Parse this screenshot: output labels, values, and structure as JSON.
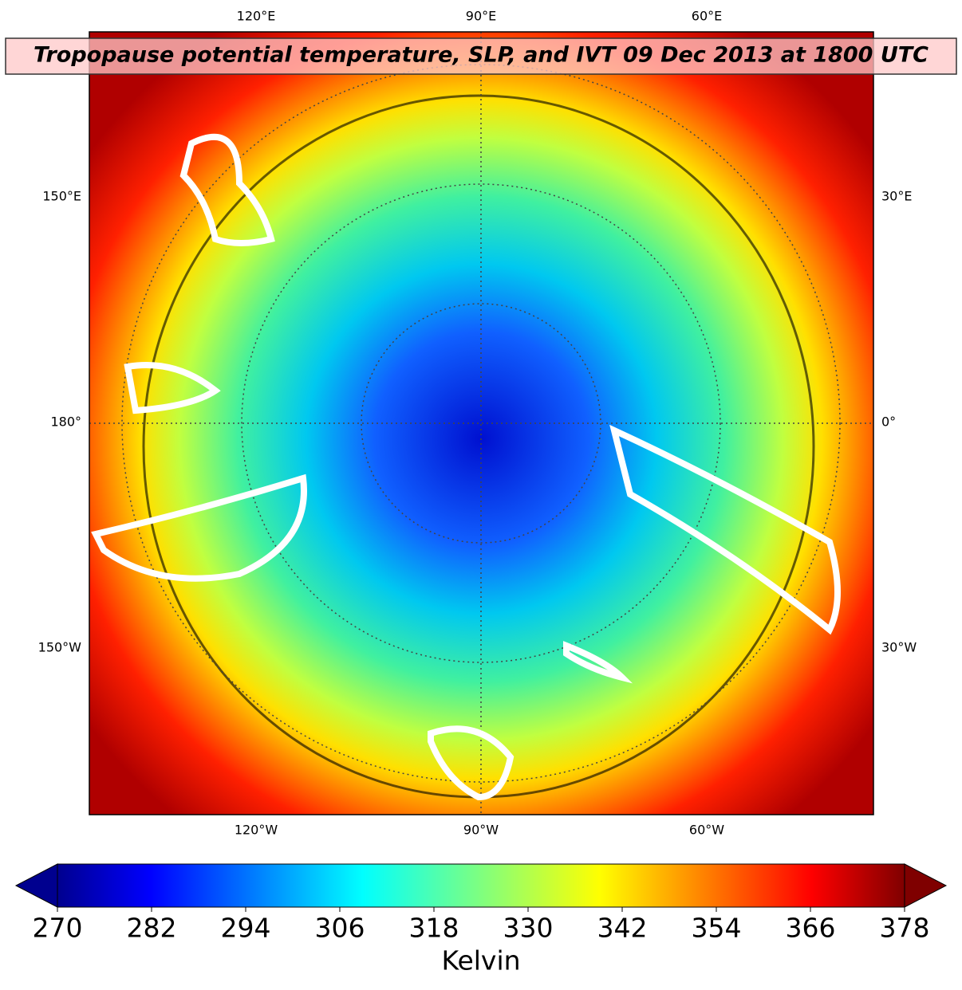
{
  "title": "Tropopause potential temperature, SLP, and IVT 09 Dec 2013 at 1800 UTC",
  "lon_labels": {
    "top": [
      "120°E",
      "90°E",
      "60°E"
    ],
    "bottom": [
      "120°W",
      "90°W",
      "60°W"
    ],
    "left": [
      "150°E",
      "180°",
      "150°W"
    ],
    "right": [
      "30°E",
      "0°",
      "30°W"
    ]
  },
  "colorbar": {
    "label": "Kelvin",
    "lim": [
      270,
      378
    ],
    "ticks": [
      270,
      282,
      294,
      306,
      318,
      330,
      342,
      354,
      366,
      378
    ]
  }
}
